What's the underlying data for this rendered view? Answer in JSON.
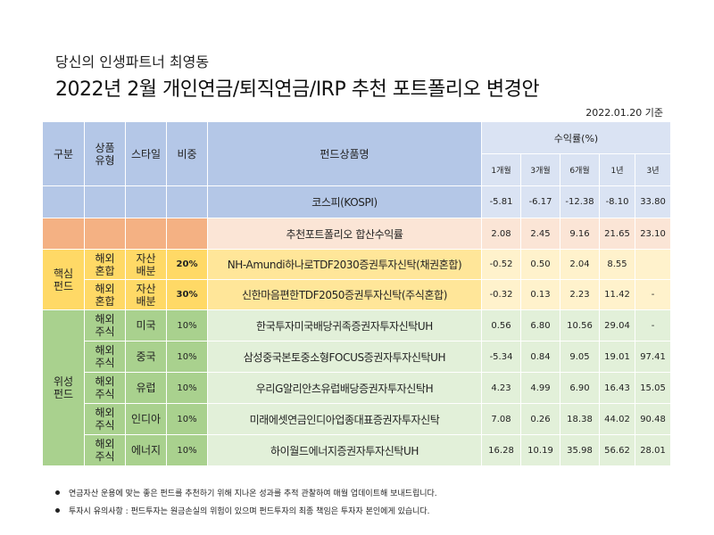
{
  "header": {
    "subtitle": "당신의 인생파트너 최영동",
    "title": "2022년 2월 개인연금/퇴직연금/IRP 추천 포트폴리오 변경안",
    "as_of": "2022.01.20 기준"
  },
  "table": {
    "headers": {
      "category": "구분",
      "product_type": [
        "상품",
        "유형"
      ],
      "style": "스타일",
      "weight": "비중",
      "fund_name": "펀드상품명",
      "returns": "수익률(%)",
      "periods": [
        "1개월",
        "3개월",
        "6개월",
        "1년",
        "3년"
      ]
    },
    "kospi": {
      "name": "코스피(KOSPI)",
      "returns": [
        "-5.81",
        "-6.17",
        "-12.38",
        "-8.10",
        "33.80"
      ]
    },
    "recommended": {
      "name": "추천포트폴리오 합산수익률",
      "returns": [
        "2.08",
        "2.45",
        "9.16",
        "21.65",
        "23.10"
      ]
    },
    "core": {
      "label": [
        "핵심",
        "펀드"
      ],
      "rows": [
        {
          "type": [
            "해외",
            "혼합"
          ],
          "style": [
            "자산",
            "배분"
          ],
          "weight": "20%",
          "name": "NH-Amundi하나로TDF2030증권투자신탁(채권혼합)",
          "returns": [
            "-0.52",
            "0.50",
            "2.04",
            "8.55",
            ""
          ]
        },
        {
          "type": [
            "해외",
            "혼합"
          ],
          "style": [
            "자산",
            "배분"
          ],
          "weight": "30%",
          "name": "신한마음편한TDF2050증권투자신탁(주식혼합)",
          "returns": [
            "-0.32",
            "0.13",
            "2.23",
            "11.42",
            "-"
          ]
        }
      ]
    },
    "satellite": {
      "label": [
        "위성",
        "펀드"
      ],
      "rows": [
        {
          "type": [
            "해외",
            "주식"
          ],
          "style": "미국",
          "weight": "10%",
          "name": "한국투자미국배당귀족증권자투자신탁UH",
          "returns": [
            "0.56",
            "6.80",
            "10.56",
            "29.04",
            "-"
          ]
        },
        {
          "type": [
            "해외",
            "주식"
          ],
          "style": "중국",
          "weight": "10%",
          "name": "삼성중국본토중소형FOCUS증권자투자신탁UH",
          "returns": [
            "-5.34",
            "0.84",
            "9.05",
            "19.01",
            "97.41"
          ]
        },
        {
          "type": [
            "해외",
            "주식"
          ],
          "style": "유럽",
          "weight": "10%",
          "name": "우리G알리안츠유럽배당증권자투자신탁H",
          "returns": [
            "4.23",
            "4.99",
            "6.90",
            "16.43",
            "15.05"
          ]
        },
        {
          "type": [
            "해외",
            "주식"
          ],
          "style": "인디아",
          "weight": "10%",
          "name": "미래에셋연금인디아업종대표증권자투자신탁",
          "returns": [
            "7.08",
            "0.26",
            "18.38",
            "44.02",
            "90.48"
          ]
        },
        {
          "type": [
            "해외",
            "주식"
          ],
          "style": "에너지",
          "weight": "10%",
          "name": "하이월드에너지증권자투자신탁UH",
          "returns": [
            "16.28",
            "10.19",
            "35.98",
            "56.62",
            "28.01"
          ]
        }
      ]
    }
  },
  "notes": [
    "연금자산 운용에 맞는 좋은 펀드를 추천하기 위해 지나온 성과를 추적 관찰하여 매월 업데이트해 보내드립니다.",
    "투자시 유의사항 : 펀드투자는 원금손실의 위험이 있으며 펀드투자의 최종 책임은 투자자 본인에게 있습니다."
  ]
}
